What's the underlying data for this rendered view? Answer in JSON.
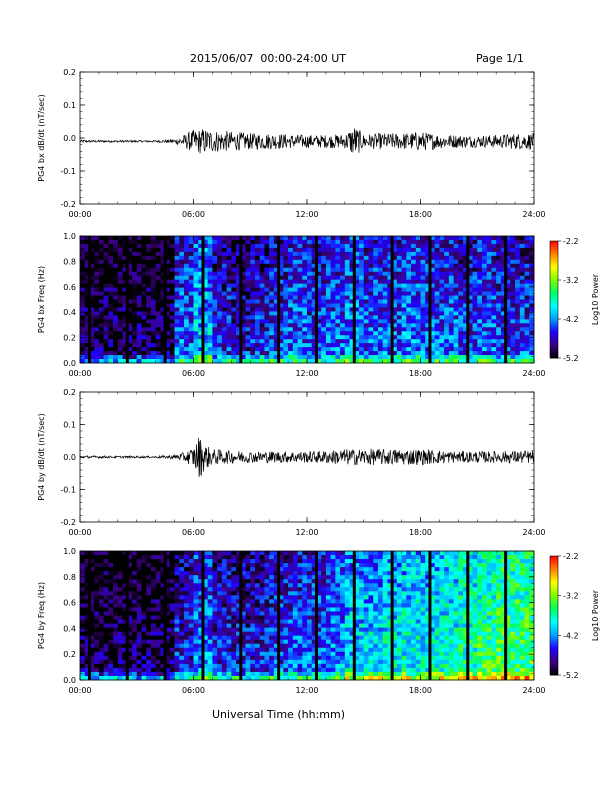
{
  "header": {
    "title": "2015/06/07  00:00-24:00 UT",
    "page": "Page 1/1"
  },
  "x_axis": {
    "label": "Universal Time (hh:mm)",
    "ticks": [
      "00:00",
      "06:00",
      "12:00",
      "18:00",
      "24:00"
    ],
    "range_hours": [
      0,
      24
    ]
  },
  "colorbar": {
    "label": "Log10 Power",
    "ticks": [
      "-2.2",
      "-3.2",
      "-4.2",
      "-5.2"
    ],
    "range": [
      -5.2,
      -2.2
    ],
    "colormap": [
      "#000000",
      "#3b0080",
      "#1f00ff",
      "#00a0ff",
      "#00ffff",
      "#00ff60",
      "#80ff00",
      "#ffff00",
      "#ff8000",
      "#ff0000"
    ]
  },
  "chart_data": [
    {
      "type": "line",
      "panel": "bx-timeseries",
      "ylabel": "PG4 bx dB/dt (nT/sec)",
      "ylim": [
        -0.2,
        0.2
      ],
      "yticks": [
        "0.2",
        "0.1",
        "0.0",
        "-0.1",
        "-0.2"
      ],
      "baseline": -0.01,
      "activity_envelope": {
        "x_hours": [
          0,
          2,
          4,
          5,
          5.5,
          6,
          6.5,
          7,
          8,
          9,
          10,
          11,
          12,
          13,
          14,
          14.5,
          15,
          16,
          17,
          18,
          19,
          20,
          21,
          22,
          23,
          24
        ],
        "amplitude": [
          0.004,
          0.003,
          0.003,
          0.006,
          0.02,
          0.035,
          0.04,
          0.035,
          0.03,
          0.025,
          0.025,
          0.022,
          0.02,
          0.02,
          0.022,
          0.05,
          0.022,
          0.025,
          0.025,
          0.03,
          0.022,
          0.02,
          0.018,
          0.02,
          0.025,
          0.025
        ]
      }
    },
    {
      "type": "heatmap",
      "panel": "bx-spectrogram",
      "ylabel": "PG4 bx Freq (Hz)",
      "ylim": [
        0.0,
        1.0
      ],
      "yticks": [
        "1.0",
        "0.8",
        "0.6",
        "0.4",
        "0.2",
        "0.0"
      ],
      "data_gaps_hours": [
        0.5,
        2.5,
        4.5,
        6.5,
        8.5,
        10.5,
        12.5,
        14.5,
        16.5,
        18.5,
        20.5,
        22.5
      ],
      "mean_log_power_by_hour": [
        -4.9,
        -4.9,
        -4.9,
        -4.9,
        -4.9,
        -4.3,
        -4.0,
        -4.5,
        -4.6,
        -4.5,
        -4.4,
        -4.3,
        -4.4,
        -4.3,
        -4.2,
        -4.3,
        -4.3,
        -4.2,
        -4.3,
        -4.3,
        -4.4,
        -4.3,
        -4.4,
        -4.4
      ]
    },
    {
      "type": "line",
      "panel": "by-timeseries",
      "ylabel": "PG4 by dB/dt (nT/sec)",
      "ylim": [
        -0.2,
        0.2
      ],
      "yticks": [
        "0.2",
        "0.1",
        "0.0",
        "-0.1",
        "-0.2"
      ],
      "baseline": 0.0,
      "activity_envelope": {
        "x_hours": [
          0,
          2,
          4,
          5,
          5.5,
          6,
          6.3,
          6.6,
          7,
          8,
          9,
          10,
          11,
          12,
          13,
          14,
          15,
          16,
          17,
          18,
          19,
          20,
          21,
          22,
          23,
          24
        ],
        "amplitude": [
          0.004,
          0.003,
          0.003,
          0.006,
          0.015,
          0.03,
          0.07,
          0.04,
          0.025,
          0.02,
          0.018,
          0.018,
          0.018,
          0.018,
          0.02,
          0.025,
          0.025,
          0.025,
          0.025,
          0.025,
          0.02,
          0.018,
          0.018,
          0.018,
          0.02,
          0.02
        ]
      }
    },
    {
      "type": "heatmap",
      "panel": "by-spectrogram",
      "ylabel": "PG4 by Freq (Hz)",
      "ylim": [
        0.0,
        1.0
      ],
      "yticks": [
        "1.0",
        "0.8",
        "0.6",
        "0.4",
        "0.2",
        "0.0"
      ],
      "data_gaps_hours": [
        0.5,
        2.5,
        4.5,
        6.5,
        8.5,
        10.5,
        12.5,
        14.5,
        16.5,
        18.5,
        20.5,
        22.5
      ],
      "mean_log_power_by_hour": [
        -4.9,
        -4.9,
        -4.9,
        -4.9,
        -4.9,
        -4.5,
        -4.2,
        -4.5,
        -4.5,
        -4.5,
        -4.4,
        -4.3,
        -4.3,
        -4.1,
        -3.9,
        -3.9,
        -3.8,
        -3.8,
        -3.8,
        -3.7,
        -3.6,
        -3.5,
        -3.4,
        -3.4
      ]
    }
  ]
}
